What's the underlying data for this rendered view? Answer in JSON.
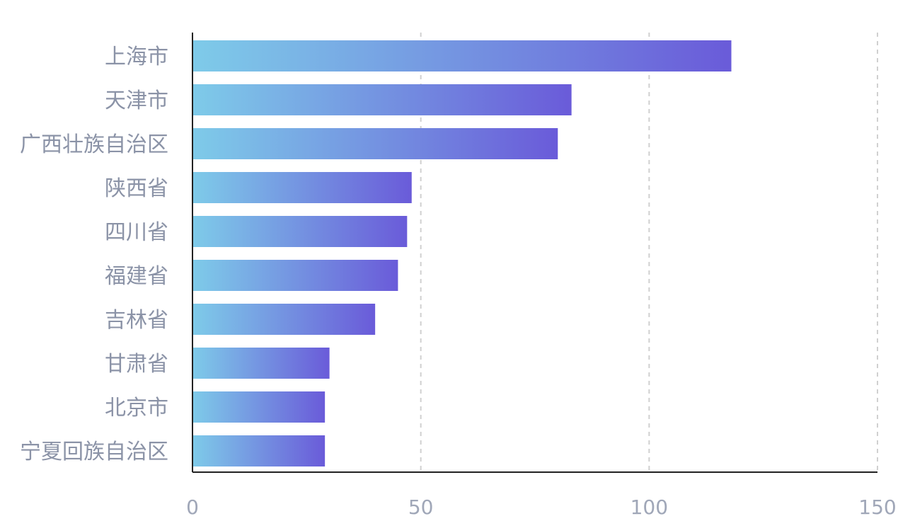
{
  "chart_data": {
    "type": "bar",
    "orientation": "horizontal",
    "categories": [
      "上海市",
      "天津市",
      "广西壮族自治区",
      "陕西省",
      "四川省",
      "福建省",
      "吉林省",
      "甘肃省",
      "北京市",
      "宁夏回族自治区"
    ],
    "values": [
      118,
      83,
      80,
      48,
      47,
      45,
      40,
      30,
      29,
      29
    ],
    "xlim": [
      0,
      150
    ],
    "x_ticks": [
      "0",
      "50",
      "100",
      "150"
    ],
    "grid": "vertical dashed",
    "colors": {
      "bar_gradient_start": "#7ecbe9",
      "bar_gradient_end": "#6a5bd9",
      "label": "#8b93a7",
      "tick": "#a0a7b8",
      "grid": "#d0d0d0",
      "axis": "#222222"
    }
  }
}
